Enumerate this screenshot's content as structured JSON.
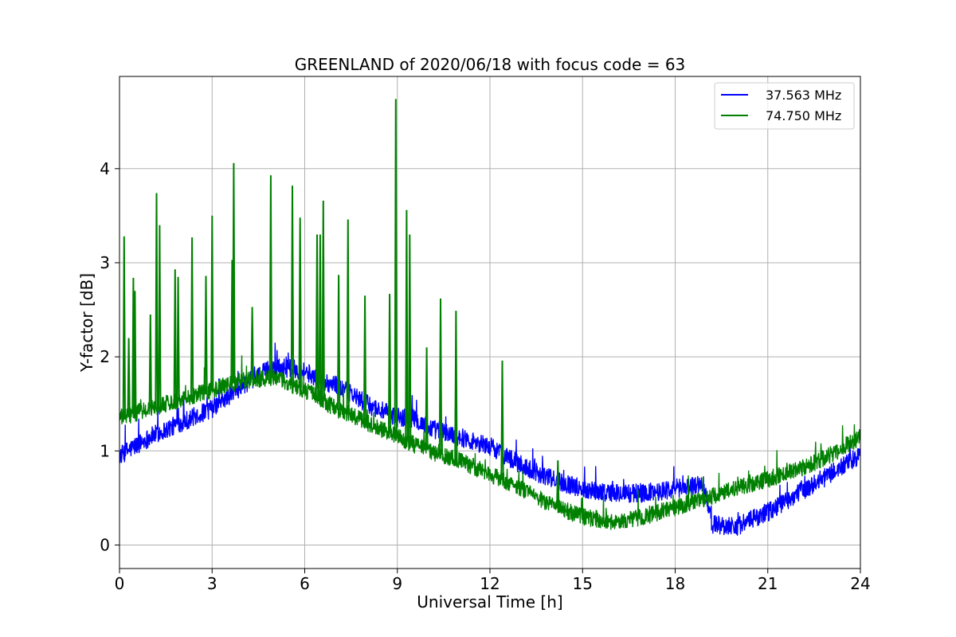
{
  "chart_data": {
    "type": "line",
    "title": "GREENLAND of 2020/06/18 with focus code = 63",
    "xlabel": "Universal Time [h]",
    "ylabel": "Y-factor [dB]",
    "xlim": [
      0,
      24
    ],
    "ylim": [
      -0.25,
      4.98
    ],
    "xticks": [
      0,
      3,
      6,
      9,
      12,
      15,
      18,
      21,
      24
    ],
    "yticks": [
      0,
      1,
      2,
      3,
      4
    ],
    "grid": true,
    "legend_position": "top-right",
    "series": [
      {
        "name": "37.563 MHz",
        "color": "#0000ff",
        "noise": 0.1,
        "x": [
          0,
          1,
          2,
          3,
          4,
          5,
          6,
          6.5,
          7,
          8,
          9,
          9.5,
          10,
          11,
          12,
          12.5,
          13,
          14,
          15,
          16,
          17,
          18,
          18.9,
          19.2,
          20,
          21,
          22,
          23,
          24
        ],
        "y": [
          0.95,
          1.15,
          1.3,
          1.45,
          1.7,
          1.9,
          1.85,
          1.75,
          1.7,
          1.5,
          1.35,
          1.35,
          1.25,
          1.15,
          1.05,
          0.95,
          0.85,
          0.7,
          0.6,
          0.55,
          0.55,
          0.6,
          0.65,
          0.22,
          0.2,
          0.35,
          0.55,
          0.75,
          0.95
        ],
        "spikes": []
      },
      {
        "name": "74.750 MHz",
        "color": "#008000",
        "noise": 0.09,
        "x": [
          0,
          1,
          2,
          3,
          4,
          5,
          6,
          7,
          8,
          9,
          10,
          11,
          12,
          13,
          14,
          15,
          16,
          17,
          18,
          19,
          20,
          21,
          22,
          23,
          24
        ],
        "y": [
          1.35,
          1.45,
          1.55,
          1.65,
          1.75,
          1.78,
          1.65,
          1.45,
          1.3,
          1.15,
          1.0,
          0.9,
          0.75,
          0.6,
          0.42,
          0.3,
          0.25,
          0.3,
          0.4,
          0.5,
          0.6,
          0.7,
          0.8,
          0.95,
          1.15
        ],
        "spikes": [
          [
            0.15,
            3.28
          ],
          [
            0.3,
            2.2
          ],
          [
            0.45,
            2.84
          ],
          [
            0.5,
            2.7
          ],
          [
            1.0,
            2.45
          ],
          [
            1.2,
            3.74
          ],
          [
            1.3,
            3.4
          ],
          [
            1.8,
            2.93
          ],
          [
            1.9,
            2.85
          ],
          [
            2.35,
            3.27
          ],
          [
            2.8,
            2.86
          ],
          [
            3.0,
            3.5
          ],
          [
            3.7,
            4.06
          ],
          [
            3.65,
            3.03
          ],
          [
            4.3,
            2.53
          ],
          [
            4.9,
            3.93
          ],
          [
            5.6,
            3.82
          ],
          [
            5.85,
            3.48
          ],
          [
            6.4,
            3.3
          ],
          [
            6.5,
            3.3
          ],
          [
            6.6,
            3.66
          ],
          [
            7.1,
            2.87
          ],
          [
            7.4,
            3.46
          ],
          [
            7.95,
            2.65
          ],
          [
            8.75,
            2.67
          ],
          [
            8.95,
            4.74
          ],
          [
            9.3,
            3.56
          ],
          [
            9.4,
            3.3
          ],
          [
            9.95,
            2.1
          ],
          [
            10.4,
            2.62
          ],
          [
            10.9,
            2.49
          ],
          [
            12.4,
            1.96
          ],
          [
            14.2,
            0.9
          ]
        ]
      }
    ]
  }
}
